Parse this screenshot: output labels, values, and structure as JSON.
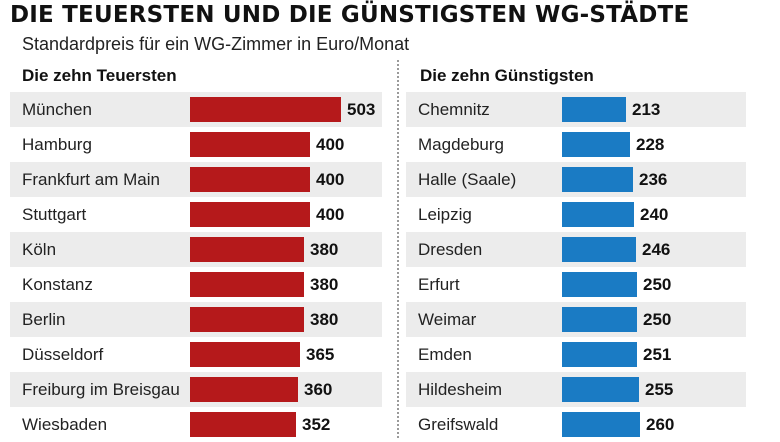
{
  "title": "DIE TEUERSTEN UND DIE GÜNSTIGSTEN WG-STÄDTE",
  "subtitle": "Standardpreis für ein WG-Zimmer in Euro/Monat",
  "colors": {
    "expensive": "#b5191b",
    "cheap": "#1a7bc4",
    "shade": "#ececec"
  },
  "chart_data": [
    {
      "type": "bar",
      "orientation": "horizontal",
      "title": "Die zehn Teuersten",
      "categories": [
        "München",
        "Hamburg",
        "Frankfurt am Main",
        "Stuttgart",
        "Köln",
        "Konstanz",
        "Berlin",
        "Düsseldorf",
        "Freiburg im Breisgau",
        "Wiesbaden"
      ],
      "values": [
        503,
        400,
        400,
        400,
        380,
        380,
        380,
        365,
        360,
        352
      ],
      "unit": "Euro/Monat"
    },
    {
      "type": "bar",
      "orientation": "horizontal",
      "title": "Die zehn Günstigsten",
      "categories": [
        "Chemnitz",
        "Magdeburg",
        "Halle (Saale)",
        "Leipzig",
        "Dresden",
        "Erfurt",
        "Weimar",
        "Emden",
        "Hildesheim",
        "Greifswald"
      ],
      "values": [
        213,
        228,
        236,
        240,
        246,
        250,
        250,
        251,
        255,
        260
      ],
      "unit": "Euro/Monat"
    }
  ]
}
